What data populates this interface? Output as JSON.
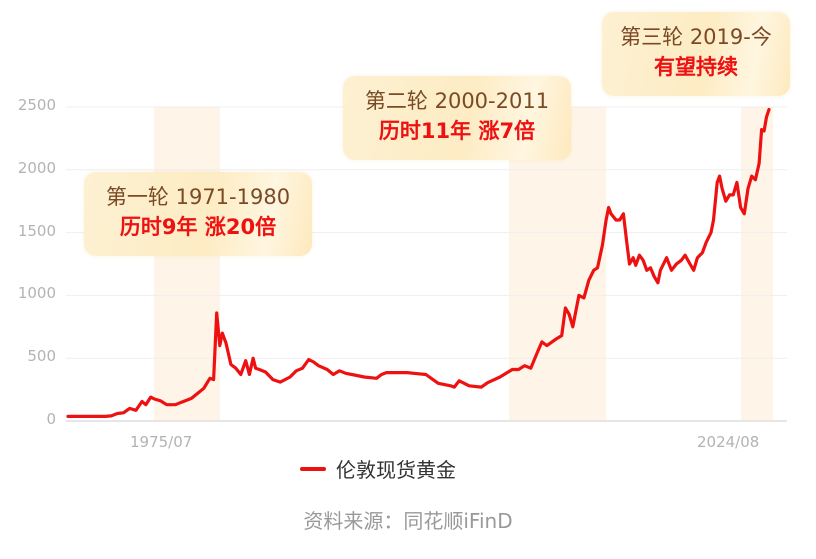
{
  "chart_data": {
    "type": "line",
    "title": "",
    "xlabel": "",
    "ylabel": "",
    "ylim": [
      0,
      2500
    ],
    "yticks": [
      0,
      500,
      1000,
      1500,
      2000,
      2500
    ],
    "xtick_labels": [
      "1975/07",
      "2024/08"
    ],
    "grid": true,
    "legend_position": "bottom",
    "series": [
      {
        "name": "伦敦现货黄金",
        "color": "#ee1111",
        "x": [
          1968.0,
          1970.0,
          1971.0,
          1971.5,
          1972.0,
          1972.5,
          1973.0,
          1973.5,
          1974.0,
          1974.3,
          1974.7,
          1975.0,
          1975.5,
          1976.0,
          1976.7,
          1977.2,
          1978.0,
          1978.5,
          1979.0,
          1979.5,
          1979.8,
          1980.05,
          1980.3,
          1980.5,
          1980.8,
          1981.2,
          1981.6,
          1982.0,
          1982.4,
          1982.7,
          1983.0,
          1983.2,
          1983.5,
          1984.0,
          1984.6,
          1985.2,
          1986.0,
          1986.5,
          1987.0,
          1987.5,
          1987.9,
          1988.3,
          1989.0,
          1989.5,
          1990.0,
          1990.5,
          1991.0,
          1992.0,
          1993.0,
          1993.4,
          1993.8,
          1994.5,
          1995.5,
          1996.0,
          1997.0,
          1998.0,
          1999.0,
          1999.3,
          1999.7,
          2000.5,
          2001.5,
          2002.0,
          2003.0,
          2004.0,
          2004.5,
          2005.0,
          2005.5,
          2006.0,
          2006.4,
          2006.8,
          2007.5,
          2008.0,
          2008.3,
          2008.6,
          2008.9,
          2009.4,
          2009.8,
          2010.2,
          2010.6,
          2010.9,
          2011.3,
          2011.6,
          2011.8,
          2012.0,
          2012.4,
          2012.7,
          2013.0,
          2013.3,
          2013.5,
          2013.8,
          2014.0,
          2014.3,
          2014.6,
          2014.9,
          2015.2,
          2015.5,
          2015.8,
          2016.0,
          2016.5,
          2016.9,
          2017.3,
          2017.7,
          2018.0,
          2018.4,
          2018.7,
          2019.0,
          2019.4,
          2019.7,
          2020.1,
          2020.3,
          2020.6,
          2020.8,
          2021.0,
          2021.3,
          2021.6,
          2021.9,
          2022.2,
          2022.5,
          2022.8,
          2023.1,
          2023.4,
          2023.7,
          2024.0,
          2024.2,
          2024.4,
          2024.6,
          2024.8
        ],
        "values": [
          37,
          37,
          37,
          41,
          60,
          65,
          100,
          85,
          155,
          130,
          190,
          175,
          160,
          130,
          130,
          150,
          180,
          220,
          260,
          340,
          330,
          860,
          600,
          700,
          620,
          450,
          420,
          370,
          480,
          370,
          500,
          420,
          410,
          390,
          330,
          310,
          350,
          400,
          420,
          490,
          470,
          440,
          410,
          370,
          400,
          380,
          370,
          350,
          340,
          370,
          385,
          385,
          385,
          380,
          370,
          300,
          280,
          270,
          320,
          280,
          270,
          305,
          350,
          410,
          410,
          440,
          420,
          540,
          630,
          600,
          650,
          680,
          900,
          850,
          750,
          1000,
          980,
          1120,
          1200,
          1220,
          1400,
          1600,
          1700,
          1650,
          1600,
          1600,
          1650,
          1400,
          1250,
          1300,
          1240,
          1320,
          1280,
          1200,
          1220,
          1150,
          1100,
          1200,
          1300,
          1200,
          1250,
          1280,
          1320,
          1250,
          1200,
          1300,
          1340,
          1420,
          1500,
          1600,
          1900,
          1950,
          1850,
          1750,
          1800,
          1800,
          1900,
          1700,
          1650,
          1850,
          1950,
          1920,
          2050,
          2320,
          2310,
          2420,
          2480
        ]
      }
    ],
    "highlight_bands": [
      {
        "from": 1971,
        "to": 1980
      },
      {
        "from": 2000,
        "to": 2011
      },
      {
        "from": 2019,
        "to": 2024.8
      }
    ]
  },
  "ytick_labels": [
    "0",
    "500",
    "1000",
    "1500",
    "2000",
    "2500"
  ],
  "callouts": [
    {
      "line1": "第一轮 1971-1980",
      "line2": "历时9年 涨20倍"
    },
    {
      "line1": "第二轮 2000-2011",
      "line2": "历时11年 涨7倍"
    },
    {
      "line1": "第三轮 2019-今",
      "line2": "有望持续"
    }
  ],
  "legend": {
    "label": "伦敦现货黄金"
  },
  "source": "资料来源：同花顺iFinD",
  "colors": {
    "line": "#ee1111",
    "band": "#fef4e7",
    "callout_title": "#7a4a24",
    "callout_highlight": "#ee1111",
    "axis_text": "#b3b3b3"
  }
}
